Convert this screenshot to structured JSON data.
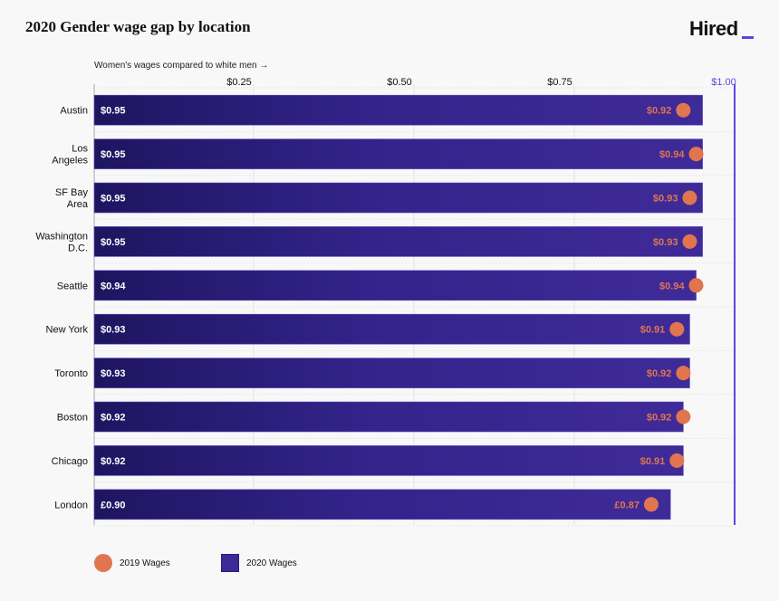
{
  "title": "2020 Gender wage gap by location",
  "logo": "Hired",
  "colors": {
    "bar_start": "#1e1560",
    "bar_end": "#3f2b98",
    "dot": "#e07550",
    "reference_line": "#5b45e0"
  },
  "chart_data": {
    "type": "bar",
    "orientation": "horizontal",
    "xlabel": "Women's wages compared to white men →",
    "xlim": [
      0,
      1.0
    ],
    "x_ticks": [
      {
        "value": 0.25,
        "label": "$0.25"
      },
      {
        "value": 0.5,
        "label": "$0.50"
      },
      {
        "value": 0.75,
        "label": "$0.75"
      },
      {
        "value": 1.0,
        "label": "$1.00"
      }
    ],
    "grid": true,
    "legend_placement": "bottom-left",
    "categories": [
      "Austin",
      "Los Angeles",
      "SF Bay Area",
      "Washington D.C.",
      "Seattle",
      "New York",
      "Toronto",
      "Boston",
      "Chicago",
      "London"
    ],
    "category_lines": [
      [
        "Austin"
      ],
      [
        "Los",
        "Angeles"
      ],
      [
        "SF Bay",
        "Area"
      ],
      [
        "Washington",
        "D.C."
      ],
      [
        "Seattle"
      ],
      [
        "New York"
      ],
      [
        "Toronto"
      ],
      [
        "Boston"
      ],
      [
        "Chicago"
      ],
      [
        "London"
      ]
    ],
    "series": [
      {
        "name": "2020 Wages",
        "mark": "bar",
        "values": [
          0.95,
          0.95,
          0.95,
          0.95,
          0.94,
          0.93,
          0.93,
          0.92,
          0.92,
          0.9
        ],
        "labels": [
          "$0.95",
          "$0.95",
          "$0.95",
          "$0.95",
          "$0.94",
          "$0.93",
          "$0.93",
          "$0.92",
          "$0.92",
          "£0.90"
        ]
      },
      {
        "name": "2019 Wages",
        "mark": "dot",
        "values": [
          0.92,
          0.94,
          0.93,
          0.93,
          0.94,
          0.91,
          0.92,
          0.92,
          0.91,
          0.87
        ],
        "labels": [
          "$0.92",
          "$0.94",
          "$0.93",
          "$0.93",
          "$0.94",
          "$0.91",
          "$0.92",
          "$0.92",
          "$0.91",
          "£0.87"
        ]
      }
    ]
  },
  "legend": {
    "dot_label": "2019 Wages",
    "bar_label": "2020 Wages"
  }
}
